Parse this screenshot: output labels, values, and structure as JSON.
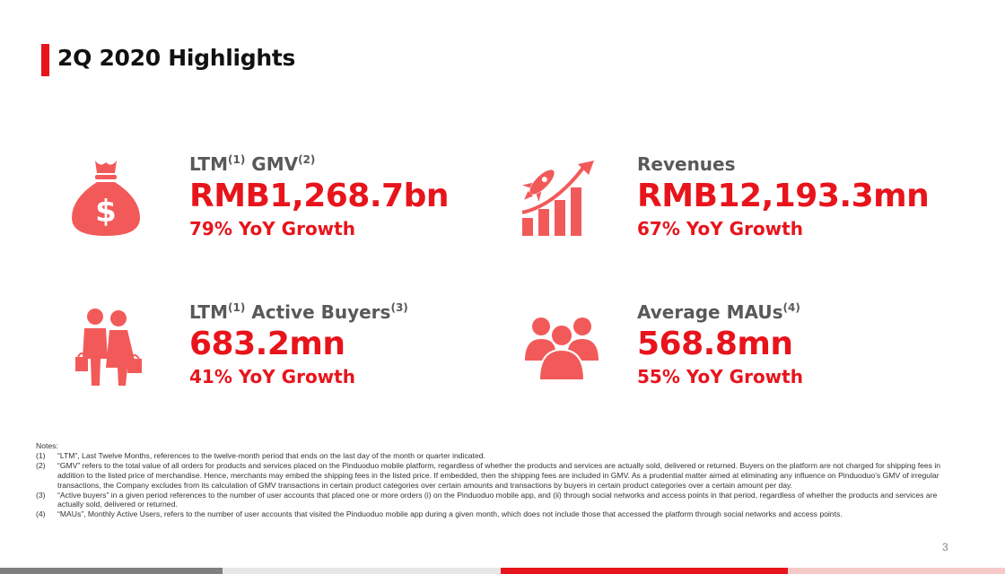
{
  "title": "2Q 2020 Highlights",
  "kpis": {
    "gmv": {
      "label": "LTM",
      "sup1": "(1)",
      "label2": " GMV",
      "sup2": "(2)",
      "value": "RMB1,268.7bn",
      "growth": "79% YoY Growth",
      "icon": "money-bag-icon"
    },
    "revenues": {
      "label": "Revenues",
      "value": "RMB12,193.3mn",
      "growth": "67% YoY Growth",
      "icon": "rocket-chart-icon"
    },
    "buyers": {
      "label": "LTM",
      "sup1": "(1)",
      "label2": " Active Buyers",
      "sup2": "(3)",
      "value": "683.2mn",
      "growth": "41% YoY Growth",
      "icon": "shoppers-icon"
    },
    "maus": {
      "label": "Average MAUs",
      "sup1": "(4)",
      "value": "568.8mn",
      "growth": "55% YoY Growth",
      "icon": "users-group-icon"
    }
  },
  "notes": {
    "heading": "Notes:",
    "items": [
      {
        "num": "(1)",
        "text": "“LTM”, Last Twelve Months, references to the twelve-month period that ends on the last day of the month or quarter indicated."
      },
      {
        "num": "(2)",
        "text": "“GMV” refers to the total value of all orders for products and services placed on the Pinduoduo mobile platform, regardless of whether the products and services are actually sold, delivered or returned. Buyers on the platform are not charged for shipping fees in addition to the listed price of merchandise. Hence, merchants may embed the shipping fees in the listed price. If embedded, then the shipping fees are included in GMV. As a prudential matter aimed at eliminating any influence on Pinduoduo’s GMV of irregular transactions, the Company excludes from its calculation of GMV transactions in certain product categories over certain amounts and transactions by buyers in certain product categories over a certain amount per day."
      },
      {
        "num": "(3)",
        "text": "“Active buyers” in a given period references to the number of user accounts that placed one or more orders (i) on the Pinduoduo mobile app, and (ii) through social networks and access points in that period, regardless of whether the products and services are actually sold, delivered or returned."
      },
      {
        "num": "(4)",
        "text": "“MAUs”, Monthly Active Users, refers to the number of user accounts that visited the Pinduoduo mobile app during a given month, which does not include those that accessed the platform through social networks and access points."
      }
    ]
  },
  "page_number": "3",
  "colors": {
    "accent": "#e8141c",
    "icon": "#f25a5a",
    "label": "#595959",
    "footer_gray": "#7f7f7f"
  }
}
